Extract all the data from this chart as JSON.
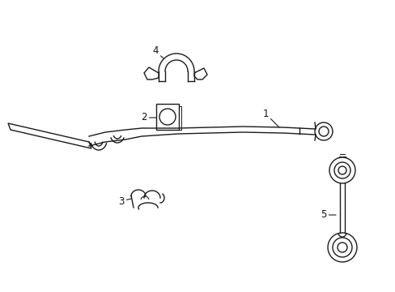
{
  "bg_color": "#ffffff",
  "line_color": "#1a1a1a",
  "label_color": "#111111",
  "figsize": [
    4.89,
    3.6
  ],
  "dpi": 100,
  "xlim": [
    0,
    489
  ],
  "ylim": [
    360,
    0
  ],
  "parts": [
    "1",
    "2",
    "3",
    "4",
    "5"
  ]
}
